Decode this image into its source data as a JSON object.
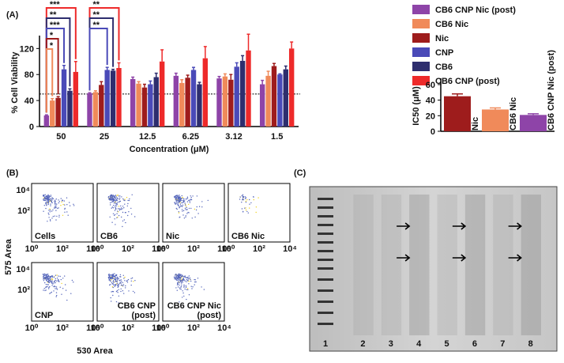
{
  "chart_data": [
    {
      "type": "bar",
      "title": "(A)",
      "y_label": "% Cell Viability",
      "x_label": "Concentration (μM)",
      "categories": [
        "50",
        "25",
        "12.5",
        "6.25",
        "3.12",
        "1.5"
      ],
      "series": [
        {
          "name": "CB6 CNP Nic (post)",
          "color": "#8e44a8",
          "values": [
            17,
            51,
            73,
            78,
            74,
            65
          ],
          "errors": [
            1,
            1,
            3,
            4,
            3,
            6
          ]
        },
        {
          "name": "CB6 Nic",
          "color": "#f08a5a",
          "values": [
            40,
            53,
            66,
            67,
            77,
            78
          ],
          "errors": [
            3,
            2,
            3,
            5,
            4,
            7
          ]
        },
        {
          "name": "Nic",
          "color": "#9e1c1c",
          "values": [
            44,
            64,
            60,
            75,
            72,
            93
          ],
          "errors": [
            2,
            5,
            5,
            4,
            8,
            4
          ]
        },
        {
          "name": "CNP",
          "color": "#4a4ab8",
          "values": [
            88,
            87,
            65,
            87,
            92,
            80
          ],
          "errors": [
            6,
            4,
            5,
            4,
            6,
            1
          ]
        },
        {
          "name": "CB6",
          "color": "#2e2e6e",
          "values": [
            55,
            86,
            76,
            65,
            101,
            88
          ],
          "errors": [
            3,
            2,
            6,
            3,
            8,
            5
          ]
        },
        {
          "name": "CB6 CNP (post)",
          "color": "#ee2a2a",
          "values": [
            84,
            90,
            100,
            105,
            117,
            120
          ],
          "errors": [
            16,
            8,
            18,
            18,
            25,
            10
          ]
        }
      ],
      "ylim": [
        0,
        135
      ],
      "yticks": [
        0,
        40,
        80,
        120
      ],
      "hline": 50,
      "annotations": [
        {
          "category": "50",
          "series": "CB6 CNP (post)",
          "text": "***"
        },
        {
          "category": "50",
          "series": "CB6",
          "text": "**"
        },
        {
          "category": "50",
          "series": "CNP",
          "text": "***"
        },
        {
          "category": "50",
          "series": "Nic",
          "text": "*"
        },
        {
          "category": "50",
          "series": "CB6 Nic",
          "text": "*"
        },
        {
          "category": "25",
          "series": "CB6 CNP (post)",
          "text": "**"
        },
        {
          "category": "25",
          "series": "CB6",
          "text": "**"
        },
        {
          "category": "25",
          "series": "CNP",
          "text": "**"
        }
      ]
    },
    {
      "type": "bar",
      "y_label": "IC50 (μM)",
      "categories": [
        "Nic",
        "CB6 Nic",
        "CB6 CNP Nic (post)"
      ],
      "values": [
        45,
        28,
        21
      ],
      "errors": [
        3,
        2,
        1.5
      ],
      "colors": [
        "#9e1c1c",
        "#f08a5a",
        "#8e44a8"
      ],
      "ylim": [
        0,
        65
      ],
      "yticks": [
        0,
        20,
        40,
        60
      ]
    }
  ],
  "panel_b": {
    "label": "(B)",
    "y_label": "575 Area",
    "x_label": "530 Area",
    "x_ticks": [
      "10⁰",
      "10²",
      "10⁴"
    ],
    "y_ticks": [
      "10⁴",
      "10²"
    ],
    "plots": [
      [
        "Cells"
      ],
      [
        "CB6"
      ],
      [
        "Nic"
      ],
      [
        "CB6 Nic"
      ],
      [
        "CNP"
      ],
      [
        "CB6 CNP",
        "(post)"
      ],
      [
        "CB6 CNP Nic",
        "(post)"
      ]
    ]
  },
  "panel_c": {
    "label": "(C)",
    "lanes": [
      1,
      2,
      3,
      4,
      5,
      6,
      7,
      8
    ]
  }
}
